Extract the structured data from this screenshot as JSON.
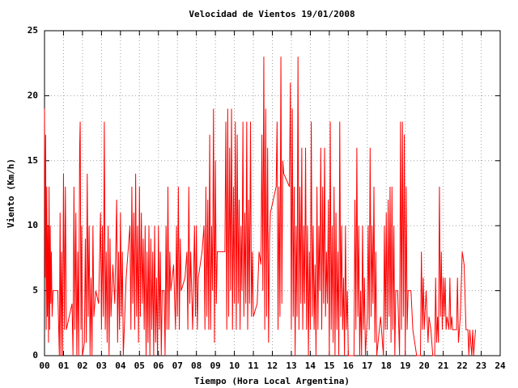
{
  "chart_data": {
    "type": "line",
    "title": "Velocidad de Vientos 19/01/2008",
    "xlabel": "Tiempo (Hora Local Argentina)",
    "ylabel": "Viento (Km/h)",
    "grid": true,
    "xlim": [
      0,
      24
    ],
    "ylim": [
      0,
      25
    ],
    "yticks": [
      0,
      5,
      10,
      15,
      20,
      25
    ],
    "xticks": [
      {
        "value": 0,
        "label": "00"
      },
      {
        "value": 1,
        "label": "01"
      },
      {
        "value": 2,
        "label": "02"
      },
      {
        "value": 3,
        "label": "03"
      },
      {
        "value": 4,
        "label": "04"
      },
      {
        "value": 5,
        "label": "05"
      },
      {
        "value": 6,
        "label": "06"
      },
      {
        "value": 7,
        "label": "07"
      },
      {
        "value": 8,
        "label": "08"
      },
      {
        "value": 9,
        "label": "09"
      },
      {
        "value": 10,
        "label": "10"
      },
      {
        "value": 11,
        "label": "11"
      },
      {
        "value": 12,
        "label": "12"
      },
      {
        "value": 13,
        "label": "13"
      },
      {
        "value": 14,
        "label": "14"
      },
      {
        "value": 15,
        "label": "15"
      },
      {
        "value": 16,
        "label": "16"
      },
      {
        "value": 17,
        "label": "17"
      },
      {
        "value": 18,
        "label": "18"
      },
      {
        "value": 19,
        "label": "19"
      },
      {
        "value": 20,
        "label": "20"
      },
      {
        "value": 21,
        "label": "21"
      },
      {
        "value": 22,
        "label": "22"
      },
      {
        "value": 23,
        "label": "23"
      },
      {
        "value": 24,
        "label": "24"
      }
    ],
    "x": [
      0,
      0.03,
      0.06,
      0.09,
      0.12,
      0.15,
      0.18,
      0.21,
      0.24,
      0.27,
      0.3,
      0.33,
      0.36,
      0.4,
      0.45,
      0.7,
      0.78,
      0.82,
      0.86,
      0.9,
      0.95,
      1,
      1.05,
      1.1,
      1.15,
      1.3,
      1.45,
      1.5,
      1.55,
      1.6,
      1.65,
      1.7,
      1.75,
      1.8,
      1.85,
      1.88,
      1.92,
      1.96,
      2,
      2.1,
      2.15,
      2.2,
      2.25,
      2.3,
      2.35,
      2.4,
      2.45,
      2.5,
      2.55,
      2.6,
      2.7,
      2.85,
      2.95,
      3,
      3.05,
      3.1,
      3.15,
      3.2,
      3.25,
      3.3,
      3.35,
      3.4,
      3.45,
      3.5,
      3.6,
      3.7,
      3.8,
      3.85,
      3.9,
      3.95,
      4,
      4.05,
      4.1,
      4.15,
      4.3,
      4.5,
      4.55,
      4.6,
      4.65,
      4.7,
      4.75,
      4.8,
      4.85,
      4.9,
      4.95,
      5,
      5.05,
      5.1,
      5.15,
      5.2,
      5.25,
      5.3,
      5.35,
      5.4,
      5.45,
      5.5,
      5.55,
      5.6,
      5.65,
      5.7,
      5.75,
      5.8,
      5.85,
      5.9,
      5.95,
      6,
      6.05,
      6.1,
      6.15,
      6.2,
      6.3,
      6.35,
      6.4,
      6.45,
      6.5,
      6.55,
      6.6,
      6.65,
      6.8,
      6.9,
      6.95,
      7,
      7.05,
      7.1,
      7.15,
      7.2,
      7.4,
      7.5,
      7.55,
      7.6,
      7.65,
      7.7,
      7.8,
      7.9,
      7.95,
      8,
      8.05,
      8.1,
      8.3,
      8.4,
      8.45,
      8.5,
      8.55,
      8.6,
      8.65,
      8.7,
      8.75,
      8.8,
      8.85,
      8.9,
      8.95,
      9,
      9.05,
      9.1,
      9.15,
      9.5,
      9.55,
      9.6,
      9.65,
      9.7,
      9.75,
      9.8,
      9.85,
      9.9,
      9.95,
      10,
      10.05,
      10.1,
      10.15,
      10.2,
      10.25,
      10.3,
      10.35,
      10.4,
      10.45,
      10.5,
      10.55,
      10.6,
      10.65,
      10.7,
      10.75,
      10.8,
      10.85,
      10.9,
      10.95,
      11,
      11.2,
      11.3,
      11.4,
      11.45,
      11.5,
      11.55,
      11.6,
      11.65,
      11.7,
      11.75,
      11.8,
      11.85,
      11.9,
      12.2,
      12.25,
      12.3,
      12.35,
      12.4,
      12.45,
      12.5,
      12.55,
      12.6,
      12.9,
      12.95,
      13,
      13.05,
      13.1,
      13.15,
      13.2,
      13.25,
      13.3,
      13.35,
      13.4,
      13.45,
      13.5,
      13.55,
      13.6,
      13.65,
      13.7,
      13.75,
      13.8,
      13.85,
      13.9,
      13.95,
      14,
      14.05,
      14.1,
      14.15,
      14.2,
      14.25,
      14.3,
      14.35,
      14.4,
      14.45,
      14.5,
      14.55,
      14.6,
      14.65,
      14.7,
      14.75,
      14.8,
      14.85,
      14.9,
      14.95,
      15,
      15.05,
      15.1,
      15.15,
      15.2,
      15.25,
      15.3,
      15.35,
      15.4,
      15.45,
      15.5,
      15.55,
      15.6,
      15.65,
      15.7,
      15.75,
      15.8,
      15.85,
      15.9,
      15.95,
      16,
      16.3,
      16.35,
      16.4,
      16.45,
      16.5,
      16.55,
      16.6,
      16.65,
      16.7,
      16.75,
      16.8,
      16.85,
      16.9,
      17,
      17.05,
      17.1,
      17.15,
      17.2,
      17.25,
      17.3,
      17.35,
      17.4,
      17.45,
      17.5,
      17.7,
      17.85,
      17.9,
      17.95,
      18,
      18.05,
      18.1,
      18.15,
      18.2,
      18.25,
      18.3,
      18.35,
      18.4,
      18.45,
      18.5,
      18.6,
      18.7,
      18.75,
      18.8,
      18.85,
      18.9,
      18.95,
      19,
      19.05,
      19.1,
      19.15,
      19.3,
      19.4,
      19.5,
      19.6,
      19.8,
      19.85,
      19.9,
      19.95,
      20,
      20.1,
      20.2,
      20.25,
      20.35,
      20.45,
      20.55,
      20.6,
      20.65,
      20.7,
      20.75,
      20.8,
      20.85,
      20.9,
      20.95,
      21,
      21.05,
      21.1,
      21.15,
      21.2,
      21.3,
      21.35,
      21.4,
      21.45,
      21.5,
      21.55,
      21.7,
      21.75,
      21.8,
      21.9,
      22,
      22.1,
      22.2,
      22.3,
      22.35,
      22.4,
      22.5,
      22.55,
      22.6,
      22.7
    ],
    "series": [
      {
        "color": "#ff0000",
        "values": [
          19,
          6,
          17,
          2,
          13,
          3,
          10,
          1,
          13,
          2,
          10,
          4,
          8,
          3,
          5,
          5,
          0,
          11,
          0,
          8,
          0,
          14,
          2,
          13,
          2,
          3,
          4,
          0,
          13,
          2,
          11,
          0,
          8,
          0,
          16,
          18,
          2,
          10,
          0,
          1,
          9,
          1,
          14,
          3,
          10,
          0,
          6,
          0,
          10,
          3,
          5,
          4,
          11,
          2,
          10,
          3,
          18,
          2,
          8,
          1,
          10,
          0,
          9,
          3,
          7,
          4,
          12,
          1,
          8,
          2,
          11,
          3,
          8,
          0,
          6,
          10,
          2,
          13,
          4,
          11,
          2,
          14,
          3,
          10,
          1,
          13,
          3,
          11,
          4,
          9,
          2,
          10,
          0,
          8,
          1,
          10,
          0,
          9,
          2,
          8,
          0,
          10,
          1,
          6,
          0,
          10,
          2,
          8,
          0,
          5,
          5,
          0,
          10,
          2,
          13,
          2,
          8,
          5,
          7,
          2,
          10,
          3,
          13,
          2,
          9,
          5,
          6,
          8,
          2,
          13,
          4,
          8,
          2,
          10,
          3,
          10,
          2,
          6,
          8,
          10,
          2,
          13,
          3,
          12,
          2,
          17,
          2,
          10,
          5,
          19,
          1,
          15,
          4,
          8,
          8,
          8,
          18,
          2,
          19,
          3,
          16,
          5,
          19,
          2,
          13,
          4,
          18,
          2,
          17,
          4,
          12,
          2,
          10,
          5,
          18,
          3,
          11,
          4,
          18,
          2,
          12,
          4,
          18,
          3,
          8,
          3,
          4,
          8,
          7,
          17,
          5,
          23,
          2,
          19,
          3,
          16,
          1,
          9,
          11,
          13,
          18,
          2,
          13,
          3,
          23,
          4,
          15,
          14,
          13,
          21,
          2,
          19,
          3,
          13,
          0,
          10,
          3,
          23,
          2,
          13,
          4,
          16,
          2,
          10,
          4,
          16,
          2,
          10,
          0,
          8,
          2,
          18,
          3,
          10,
          2,
          7,
          0,
          13,
          2,
          10,
          5,
          16,
          2,
          13,
          4,
          16,
          3,
          8,
          4,
          12,
          0,
          18,
          2,
          10,
          1,
          13,
          0,
          11,
          2,
          8,
          0,
          18,
          3,
          10,
          2,
          6,
          0,
          10,
          2,
          5,
          0,
          0,
          12,
          2,
          16,
          3,
          10,
          0,
          5,
          0,
          10,
          2,
          6,
          0,
          3,
          10,
          2,
          16,
          3,
          10,
          4,
          13,
          1,
          8,
          0,
          3,
          0,
          10,
          2,
          11,
          2,
          12,
          3,
          13,
          1,
          13,
          2,
          10,
          0,
          5,
          5,
          0,
          18,
          2,
          18,
          3,
          17,
          0,
          13,
          2,
          5,
          5,
          2,
          1,
          0,
          0,
          8,
          2,
          6,
          2,
          5,
          1,
          3,
          2,
          0,
          0,
          6,
          1,
          3,
          1,
          13,
          3,
          8,
          2,
          6,
          3,
          6,
          2,
          3,
          2,
          6,
          2,
          3,
          2,
          2,
          2,
          6,
          1,
          3,
          8,
          7,
          2,
          2,
          0,
          2,
          0,
          2,
          0,
          2
        ]
      }
    ]
  }
}
